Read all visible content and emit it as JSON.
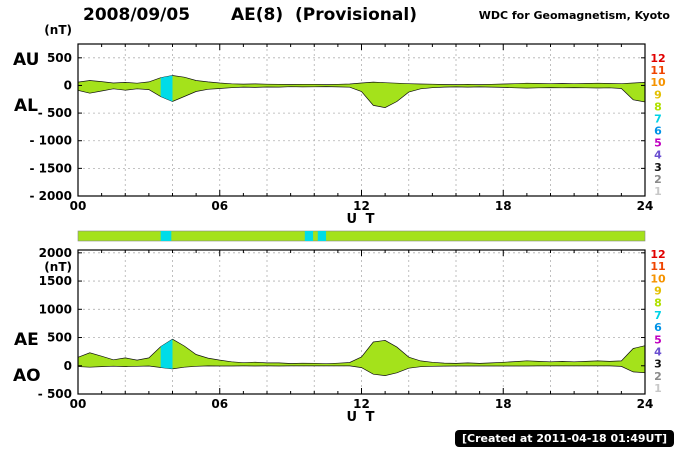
{
  "header": {
    "date": "2008/09/05",
    "title": "AE(8)  (Provisional)",
    "credit": "WDC for Geomagnetism, Kyoto"
  },
  "footer": {
    "created": "[Created at 2011-04-18 01:49UT]"
  },
  "colors": {
    "band_fill": "#a4e21b",
    "cyan": "#00dce8",
    "frame": "#000000",
    "grid": "#b0b0b0"
  },
  "station_scale": [
    {
      "n": "12",
      "color": "#e10000"
    },
    {
      "n": "11",
      "color": "#ef4400"
    },
    {
      "n": "10",
      "color": "#f59300"
    },
    {
      "n": "9",
      "color": "#e3c000"
    },
    {
      "n": "8",
      "color": "#b0e000"
    },
    {
      "n": "7",
      "color": "#00d2e6"
    },
    {
      "n": "6",
      "color": "#0092e6"
    },
    {
      "n": "5",
      "color": "#c000c0"
    },
    {
      "n": "4",
      "color": "#6a4fd0"
    },
    {
      "n": "3",
      "color": "#111111"
    },
    {
      "n": "2",
      "color": "#8a8a8a"
    },
    {
      "n": "1",
      "color": "#c8c8c8"
    }
  ],
  "quality_bar": {
    "cyan_intervals_hours": [
      [
        3.5,
        3.95
      ],
      [
        9.6,
        9.95
      ],
      [
        10.15,
        10.5
      ]
    ]
  },
  "chart_data": [
    {
      "type": "area",
      "name": "AU-AL",
      "left_labels": [
        "AU",
        "AL"
      ],
      "unit_label": "(nT)",
      "xlabel": "U T",
      "x_range_hours": [
        0,
        24
      ],
      "xticks": [
        0,
        6,
        12,
        18,
        24
      ],
      "xtick_labels": [
        "00",
        "06",
        "12",
        "18",
        "24"
      ],
      "yticks": [
        500,
        0,
        -500,
        -1000,
        -1500,
        -2000
      ],
      "ytick_labels": [
        "500",
        "0",
        "- 500",
        "- 1000",
        "- 1500",
        "- 2000"
      ],
      "ylim": [
        -2000,
        750
      ],
      "grid": true,
      "x_hours": [
        0,
        0.5,
        1,
        1.5,
        2,
        2.5,
        3,
        3.5,
        4,
        4.5,
        5,
        5.5,
        6,
        6.5,
        7,
        7.5,
        8,
        8.5,
        9,
        9.5,
        10,
        10.5,
        11,
        11.5,
        12,
        12.5,
        13,
        13.5,
        14,
        14.5,
        15,
        15.5,
        16,
        16.5,
        17,
        17.5,
        18,
        18.5,
        19,
        19.5,
        20,
        20.5,
        21,
        21.5,
        22,
        22.5,
        23,
        23.5,
        24
      ],
      "series": [
        {
          "name": "AU",
          "values": [
            60,
            90,
            70,
            45,
            55,
            40,
            65,
            140,
            180,
            150,
            90,
            65,
            45,
            30,
            25,
            28,
            22,
            20,
            18,
            20,
            20,
            16,
            20,
            26,
            45,
            60,
            50,
            40,
            32,
            26,
            22,
            18,
            16,
            20,
            16,
            20,
            26,
            32,
            40,
            36,
            32,
            36,
            32,
            36,
            40,
            36,
            32,
            45,
            55
          ]
        },
        {
          "name": "AL",
          "values": [
            -90,
            -140,
            -100,
            -60,
            -85,
            -60,
            -75,
            -200,
            -290,
            -200,
            -110,
            -70,
            -55,
            -40,
            -30,
            -35,
            -28,
            -30,
            -22,
            -26,
            -24,
            -20,
            -26,
            -32,
            -110,
            -360,
            -400,
            -290,
            -120,
            -60,
            -40,
            -30,
            -26,
            -30,
            -26,
            -30,
            -36,
            -42,
            -48,
            -42,
            -38,
            -42,
            -38,
            -42,
            -46,
            -42,
            -55,
            -260,
            -300
          ]
        }
      ],
      "cyan_intervals_hours": [
        [
          3.5,
          4.0
        ]
      ]
    },
    {
      "type": "area",
      "name": "AE-AO",
      "left_labels": [
        "AE",
        "AO"
      ],
      "unit_label": "(nT)",
      "xlabel": "U T",
      "x_range_hours": [
        0,
        24
      ],
      "xticks": [
        0,
        6,
        12,
        18,
        24
      ],
      "xtick_labels": [
        "00",
        "06",
        "12",
        "18",
        "24"
      ],
      "yticks": [
        2000,
        1500,
        1000,
        500,
        0,
        -500
      ],
      "ytick_labels": [
        "2000",
        "1500",
        "1000",
        "500",
        "0",
        "- 500"
      ],
      "ylim": [
        -500,
        2050
      ],
      "grid": true,
      "x_hours": [
        0,
        0.5,
        1,
        1.5,
        2,
        2.5,
        3,
        3.5,
        4,
        4.5,
        5,
        5.5,
        6,
        6.5,
        7,
        7.5,
        8,
        8.5,
        9,
        9.5,
        10,
        10.5,
        11,
        11.5,
        12,
        12.5,
        13,
        13.5,
        14,
        14.5,
        15,
        15.5,
        16,
        16.5,
        17,
        17.5,
        18,
        18.5,
        19,
        19.5,
        20,
        20.5,
        21,
        21.5,
        22,
        22.5,
        23,
        23.5,
        24
      ],
      "series": [
        {
          "name": "AE",
          "values": [
            150,
            230,
            170,
            105,
            140,
            100,
            140,
            340,
            470,
            350,
            200,
            135,
            100,
            70,
            55,
            63,
            50,
            50,
            40,
            46,
            44,
            36,
            46,
            58,
            155,
            420,
            450,
            330,
            152,
            86,
            62,
            48,
            42,
            50,
            42,
            50,
            62,
            74,
            88,
            78,
            70,
            78,
            70,
            78,
            86,
            78,
            87,
            305,
            355
          ]
        },
        {
          "name": "AO",
          "values": [
            -15,
            -25,
            -15,
            -8,
            -15,
            -10,
            -5,
            -30,
            -55,
            -25,
            -10,
            -3,
            -5,
            -5,
            -3,
            -4,
            -3,
            -5,
            -2,
            -3,
            -2,
            -2,
            -3,
            -3,
            -33,
            -150,
            -175,
            -125,
            -44,
            -17,
            -9,
            -6,
            -5,
            -5,
            -5,
            -5,
            -5,
            -5,
            -4,
            -3,
            -3,
            -3,
            -3,
            -3,
            -3,
            -3,
            -12,
            -108,
            -123
          ]
        }
      ],
      "cyan_intervals_hours": [
        [
          3.5,
          4.0
        ]
      ]
    }
  ]
}
